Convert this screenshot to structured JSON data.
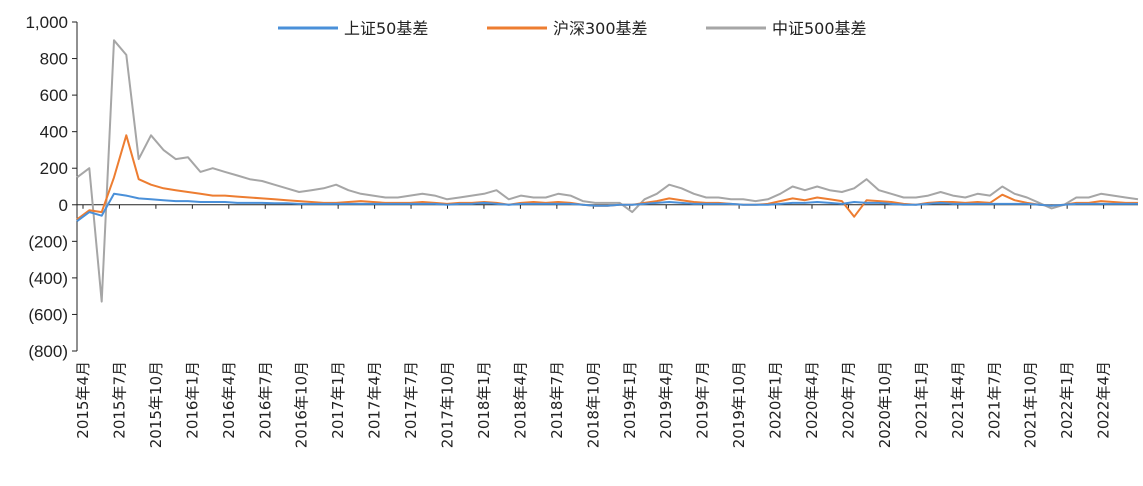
{
  "chart_data": {
    "type": "line",
    "title": "",
    "xlabel": "",
    "ylabel": "",
    "ylim": [
      -800,
      1000
    ],
    "y_ticks": [
      "1,000",
      "800",
      "600",
      "400",
      "200",
      "0",
      "(200)",
      "(400)",
      "(600)",
      "(800)"
    ],
    "x_ticks": [
      "2015年4月",
      "2015年7月",
      "2015年10月",
      "2016年1月",
      "2016年4月",
      "2016年7月",
      "2016年10月",
      "2017年1月",
      "2017年4月",
      "2017年7月",
      "2017年10月",
      "2018年1月",
      "2018年4月",
      "2018年7月",
      "2018年10月",
      "2019年1月",
      "2019年4月",
      "2019年7月",
      "2019年10月",
      "2020年1月",
      "2020年4月",
      "2020年7月",
      "2020年10月",
      "2021年1月",
      "2021年4月",
      "2021年7月",
      "2021年10月",
      "2022年1月",
      "2022年4月"
    ],
    "x": [
      "2015-04",
      "2015-05",
      "2015-06",
      "2015-07",
      "2015-08",
      "2015-09",
      "2015-10",
      "2015-11",
      "2015-12",
      "2016-01",
      "2016-02",
      "2016-03",
      "2016-04",
      "2016-05",
      "2016-06",
      "2016-07",
      "2016-08",
      "2016-09",
      "2016-10",
      "2016-11",
      "2016-12",
      "2017-01",
      "2017-02",
      "2017-03",
      "2017-04",
      "2017-05",
      "2017-06",
      "2017-07",
      "2017-08",
      "2017-09",
      "2017-10",
      "2017-11",
      "2017-12",
      "2018-01",
      "2018-02",
      "2018-03",
      "2018-04",
      "2018-05",
      "2018-06",
      "2018-07",
      "2018-08",
      "2018-09",
      "2018-10",
      "2018-11",
      "2018-12",
      "2019-01",
      "2019-02",
      "2019-03",
      "2019-04",
      "2019-05",
      "2019-06",
      "2019-07",
      "2019-08",
      "2019-09",
      "2019-10",
      "2019-11",
      "2019-12",
      "2020-01",
      "2020-02",
      "2020-03",
      "2020-04",
      "2020-05",
      "2020-06",
      "2020-07",
      "2020-08",
      "2020-09",
      "2020-10",
      "2020-11",
      "2020-12",
      "2021-01",
      "2021-02",
      "2021-03",
      "2021-04",
      "2021-05",
      "2021-06",
      "2021-07",
      "2021-08",
      "2021-09",
      "2021-10",
      "2021-11",
      "2021-12",
      "2022-01",
      "2022-02",
      "2022-03",
      "2022-04",
      "2022-05",
      "2022-06"
    ],
    "legend_position": "top",
    "grid": false,
    "series": [
      {
        "name": "上证50基差",
        "color": "#4A90D9",
        "values": [
          -90,
          -40,
          -60,
          60,
          50,
          35,
          30,
          25,
          20,
          20,
          15,
          15,
          15,
          10,
          10,
          10,
          8,
          8,
          5,
          5,
          5,
          5,
          5,
          5,
          5,
          5,
          5,
          5,
          5,
          5,
          0,
          5,
          5,
          10,
          5,
          0,
          5,
          5,
          5,
          5,
          5,
          0,
          -5,
          -5,
          0,
          0,
          5,
          10,
          15,
          10,
          5,
          5,
          5,
          5,
          0,
          0,
          0,
          5,
          10,
          10,
          15,
          10,
          5,
          15,
          10,
          10,
          5,
          0,
          0,
          5,
          10,
          5,
          5,
          5,
          5,
          5,
          5,
          5,
          0,
          -5,
          0,
          5,
          5,
          5,
          5,
          5,
          5
        ]
      },
      {
        "name": "沪深300基差",
        "color": "#ED7D31",
        "values": [
          -80,
          -30,
          -40,
          150,
          380,
          140,
          110,
          90,
          80,
          70,
          60,
          50,
          50,
          45,
          40,
          35,
          30,
          25,
          20,
          15,
          10,
          10,
          15,
          20,
          15,
          10,
          10,
          10,
          15,
          10,
          5,
          10,
          10,
          15,
          10,
          0,
          10,
          15,
          10,
          15,
          10,
          0,
          -5,
          -5,
          0,
          0,
          10,
          20,
          35,
          25,
          15,
          10,
          10,
          5,
          0,
          0,
          5,
          20,
          35,
          25,
          40,
          30,
          20,
          -65,
          25,
          20,
          15,
          5,
          0,
          10,
          15,
          15,
          10,
          15,
          10,
          55,
          25,
          10,
          0,
          -5,
          0,
          10,
          10,
          20,
          15,
          10,
          10
        ]
      },
      {
        "name": "中证500基差",
        "color": "#A6A6A6",
        "values": [
          150,
          200,
          -530,
          900,
          820,
          250,
          380,
          300,
          250,
          260,
          180,
          200,
          180,
          160,
          140,
          130,
          110,
          90,
          70,
          80,
          90,
          110,
          80,
          60,
          50,
          40,
          40,
          50,
          60,
          50,
          30,
          40,
          50,
          60,
          80,
          30,
          50,
          40,
          40,
          60,
          50,
          20,
          10,
          10,
          10,
          -40,
          30,
          60,
          110,
          90,
          60,
          40,
          40,
          30,
          30,
          20,
          30,
          60,
          100,
          80,
          100,
          80,
          70,
          90,
          140,
          80,
          60,
          40,
          40,
          50,
          70,
          50,
          40,
          60,
          50,
          100,
          60,
          40,
          10,
          -20,
          0,
          40,
          40,
          60,
          50,
          40,
          30
        ]
      }
    ]
  }
}
